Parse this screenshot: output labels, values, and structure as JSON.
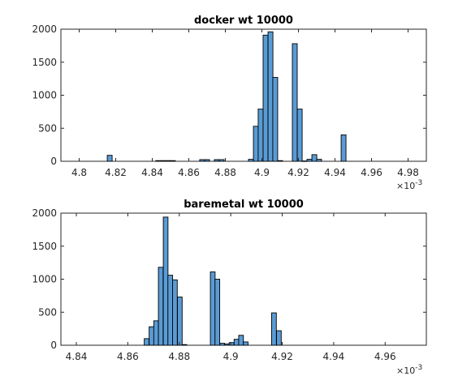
{
  "chart_data": [
    {
      "type": "bar",
      "title": "docker wt 10000",
      "xlabel": "",
      "ylabel": "",
      "x_exponent_label": "×10-3",
      "xlim": [
        4.79,
        4.99
      ],
      "ylim": [
        0,
        2000
      ],
      "xticks": [
        4.8,
        4.82,
        4.84,
        4.86,
        4.88,
        4.9,
        4.92,
        4.94,
        4.96,
        4.98
      ],
      "xtick_labels": [
        "4.8",
        "4.82",
        "4.84",
        "4.86",
        "4.88",
        "4.9",
        "4.92",
        "4.94",
        "4.96",
        "4.98"
      ],
      "yticks": [
        0,
        500,
        1000,
        1500,
        2000
      ],
      "ytick_labels": [
        "0",
        "500",
        "1000",
        "1500",
        "2000"
      ],
      "bin_width": 0.00267,
      "bars": [
        {
          "x": 4.8167,
          "y": 90
        },
        {
          "x": 4.8433,
          "y": 10
        },
        {
          "x": 4.846,
          "y": 10
        },
        {
          "x": 4.8487,
          "y": 10
        },
        {
          "x": 4.8513,
          "y": 10
        },
        {
          "x": 4.8673,
          "y": 25
        },
        {
          "x": 4.87,
          "y": 25
        },
        {
          "x": 4.8753,
          "y": 25
        },
        {
          "x": 4.878,
          "y": 25
        },
        {
          "x": 4.894,
          "y": 30
        },
        {
          "x": 4.8967,
          "y": 530
        },
        {
          "x": 4.8993,
          "y": 790
        },
        {
          "x": 4.902,
          "y": 1910
        },
        {
          "x": 4.9047,
          "y": 1960
        },
        {
          "x": 4.9073,
          "y": 1270
        },
        {
          "x": 4.91,
          "y": 10
        },
        {
          "x": 4.918,
          "y": 1780
        },
        {
          "x": 4.9207,
          "y": 790
        },
        {
          "x": 4.9233,
          "y": 5
        },
        {
          "x": 4.926,
          "y": 30
        },
        {
          "x": 4.9287,
          "y": 100
        },
        {
          "x": 4.9313,
          "y": 30
        },
        {
          "x": 4.9447,
          "y": 400
        }
      ],
      "bar_color": "#5a9bd4"
    },
    {
      "type": "bar",
      "title": "baremetal wt 10000",
      "xlabel": "",
      "ylabel": "",
      "x_exponent_label": "×10-3",
      "xlim": [
        4.834,
        4.976
      ],
      "ylim": [
        0,
        2000
      ],
      "xticks": [
        4.84,
        4.86,
        4.88,
        4.9,
        4.92,
        4.94,
        4.96
      ],
      "xtick_labels": [
        "4.84",
        "4.86",
        "4.88",
        "4.9",
        "4.92",
        "4.94",
        "4.96"
      ],
      "yticks": [
        0,
        500,
        1000,
        1500,
        2000
      ],
      "ytick_labels": [
        "0",
        "500",
        "1000",
        "1500",
        "2000"
      ],
      "bin_width": 0.00183,
      "bars": [
        {
          "x": 4.8673,
          "y": 100
        },
        {
          "x": 4.8692,
          "y": 280
        },
        {
          "x": 4.871,
          "y": 370
        },
        {
          "x": 4.8728,
          "y": 1180
        },
        {
          "x": 4.8747,
          "y": 1940
        },
        {
          "x": 4.8765,
          "y": 1060
        },
        {
          "x": 4.8783,
          "y": 990
        },
        {
          "x": 4.8802,
          "y": 730
        },
        {
          "x": 4.882,
          "y": 10
        },
        {
          "x": 4.893,
          "y": 1110
        },
        {
          "x": 4.8948,
          "y": 1000
        },
        {
          "x": 4.8967,
          "y": 30
        },
        {
          "x": 4.8985,
          "y": 20
        },
        {
          "x": 4.9003,
          "y": 40
        },
        {
          "x": 4.9022,
          "y": 90
        },
        {
          "x": 4.904,
          "y": 150
        },
        {
          "x": 4.9058,
          "y": 50
        },
        {
          "x": 4.9168,
          "y": 490
        },
        {
          "x": 4.9187,
          "y": 220
        }
      ],
      "bar_color": "#5a9bd4"
    }
  ]
}
